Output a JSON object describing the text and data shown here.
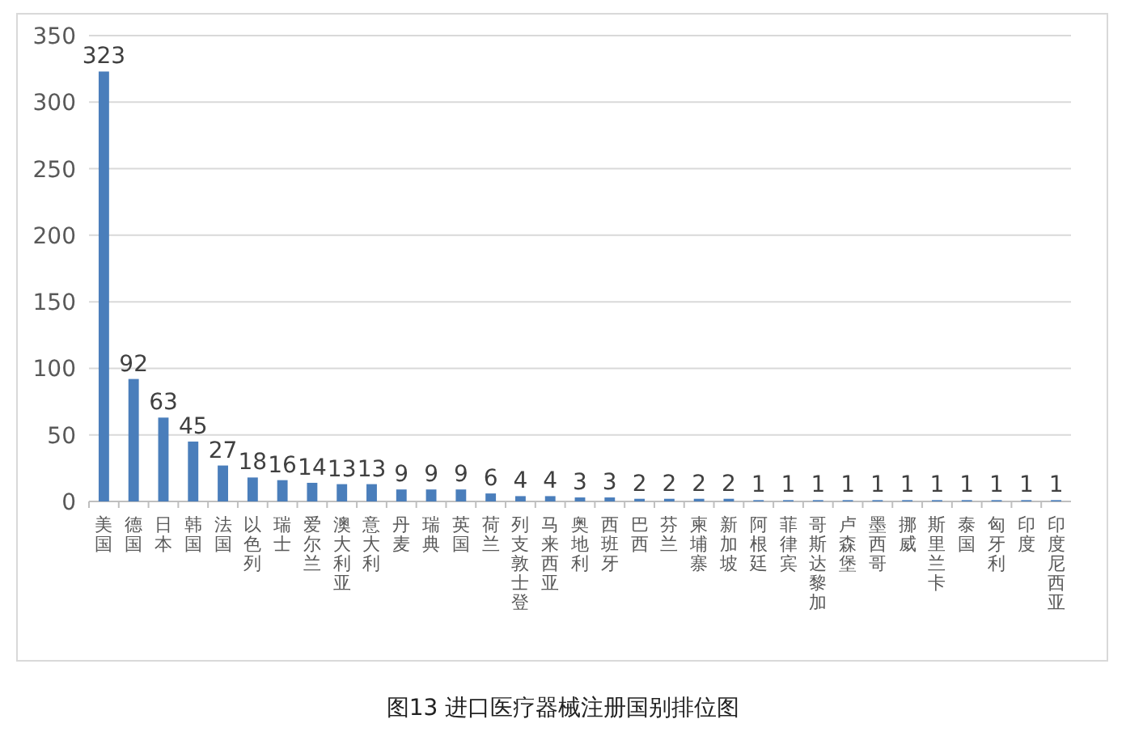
{
  "chart_data": {
    "type": "bar",
    "title": "图13 进口医疗器械注册国别排位图",
    "categories": [
      "美国",
      "德国",
      "日本",
      "韩国",
      "法国",
      "以色列",
      "瑞士",
      "爱尔兰",
      "澳大利亚",
      "意大利",
      "丹麦",
      "瑞典",
      "英国",
      "荷兰",
      "列支敦士登",
      "马来西亚",
      "奥地利",
      "西班牙",
      "巴西",
      "芬兰",
      "柬埔寨",
      "新加坡",
      "阿根廷",
      "菲律宾",
      "哥斯达黎加",
      "卢森堡",
      "墨西哥",
      "挪威",
      "斯里兰卡",
      "泰国",
      "匈牙利",
      "印度",
      "印度尼西亚"
    ],
    "values": [
      323,
      92,
      63,
      45,
      27,
      18,
      16,
      14,
      13,
      13,
      9,
      9,
      9,
      6,
      4,
      4,
      3,
      3,
      2,
      2,
      2,
      2,
      1,
      1,
      1,
      1,
      1,
      1,
      1,
      1,
      1,
      1,
      1
    ],
    "color": "#4a7ebb",
    "ylim": [
      0,
      350
    ],
    "yticks": [
      0,
      50,
      100,
      150,
      200,
      250,
      300,
      350
    ],
    "grid": "y",
    "data_labels": true
  }
}
